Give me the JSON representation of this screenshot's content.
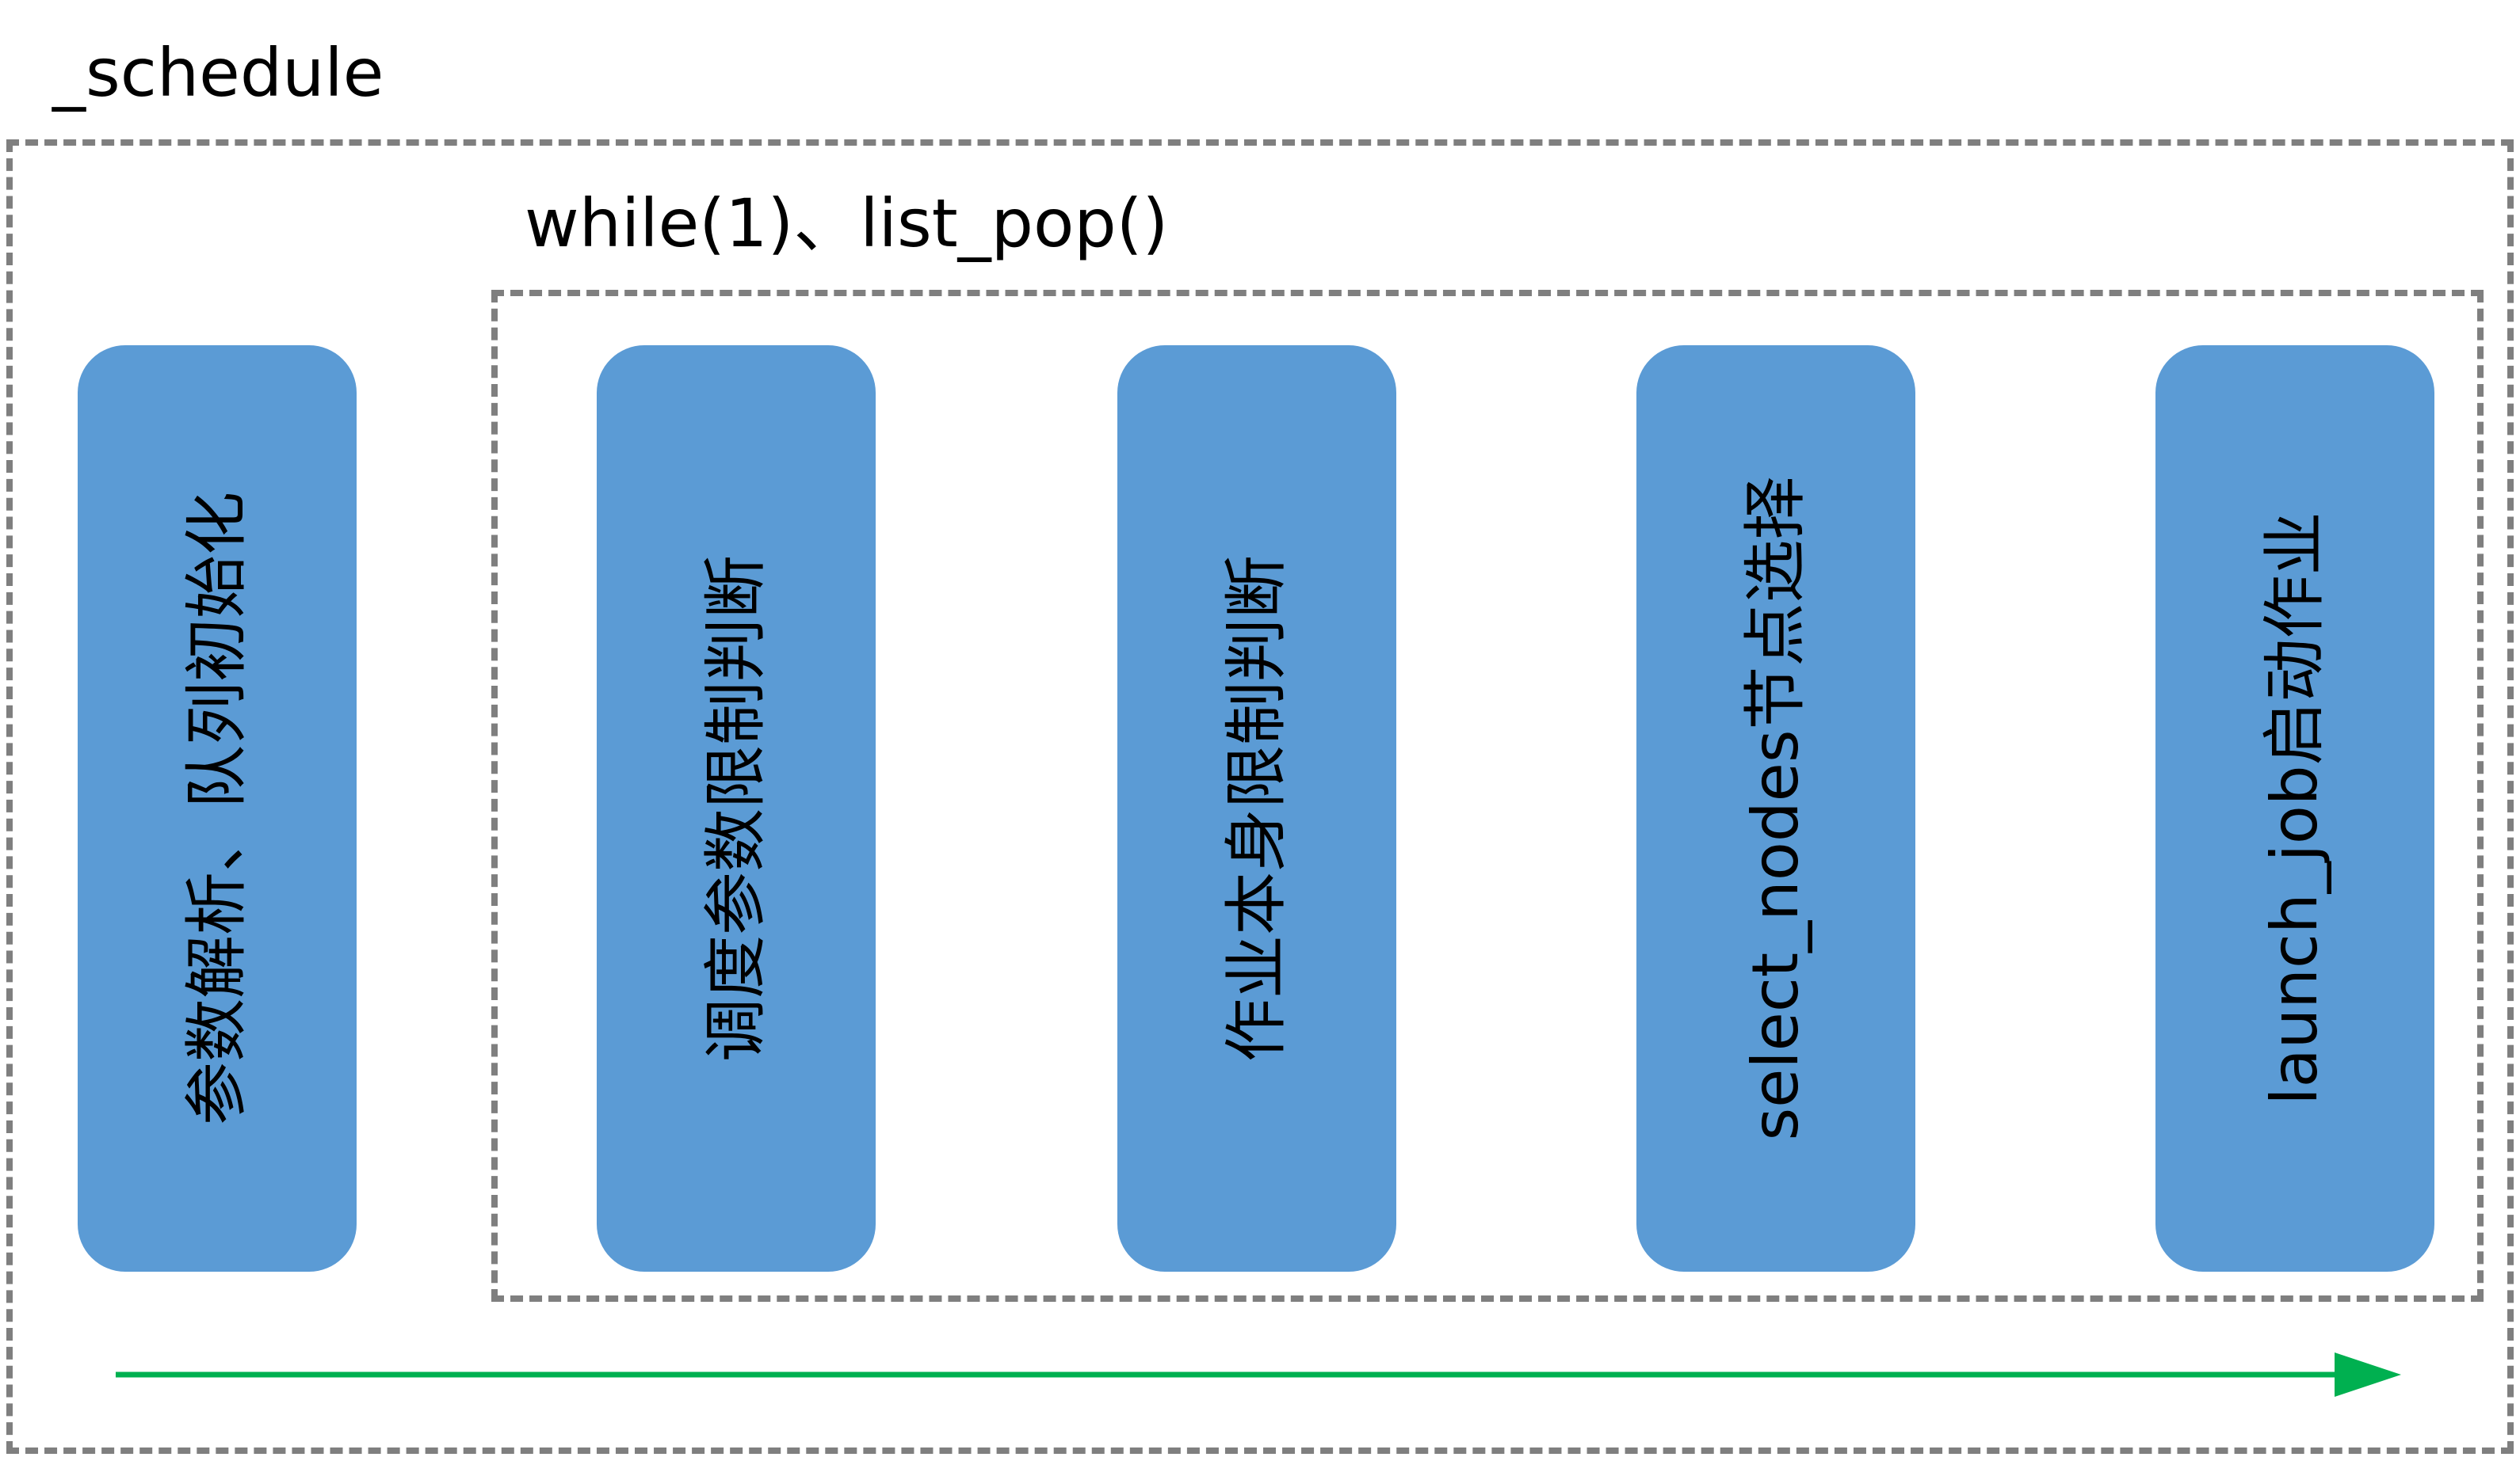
{
  "diagram": {
    "title": "_schedule",
    "loop_title": "while(1)、list_pop()",
    "steps": [
      {
        "label": "参数解析、队列初始化"
      },
      {
        "label": "调度参数限制判断"
      },
      {
        "label": "作业本身限制判断"
      },
      {
        "label": "select_nodes节点选择"
      },
      {
        "label": "launch_job启动作业"
      }
    ],
    "colors": {
      "box_fill": "#5b9bd5",
      "frame_stroke": "#7f7f7f",
      "arrow": "#00b050"
    }
  }
}
